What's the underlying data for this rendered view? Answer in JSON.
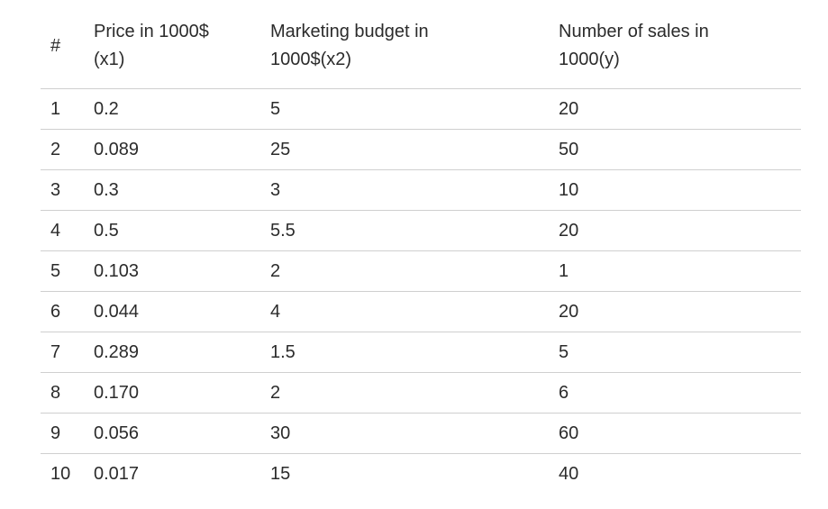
{
  "table": {
    "headers": [
      {
        "line1": "#",
        "line2": ""
      },
      {
        "line1": "Price in 1000$",
        "line2": "(x1)"
      },
      {
        "line1": "Marketing budget in",
        "line2": "1000$(x2)"
      },
      {
        "line1": "Number of sales in",
        "line2": "1000(y)"
      }
    ],
    "rows": [
      [
        "1",
        "0.2",
        "5",
        "20"
      ],
      [
        "2",
        "0.089",
        "25",
        "50"
      ],
      [
        "3",
        "0.3",
        "3",
        "10"
      ],
      [
        "4",
        "0.5",
        "5.5",
        "20"
      ],
      [
        "5",
        "0.103",
        "2",
        "1"
      ],
      [
        "6",
        "0.044",
        "4",
        "20"
      ],
      [
        "7",
        "0.289",
        "1.5",
        "5"
      ],
      [
        "8",
        "0.170",
        "2",
        "6"
      ],
      [
        "9",
        "0.056",
        "30",
        "60"
      ],
      [
        "10",
        "0.017",
        "15",
        "40"
      ]
    ]
  },
  "colors": {
    "text": "#2b2b2b",
    "rule": "#cfcfcf",
    "background": "#ffffff"
  }
}
